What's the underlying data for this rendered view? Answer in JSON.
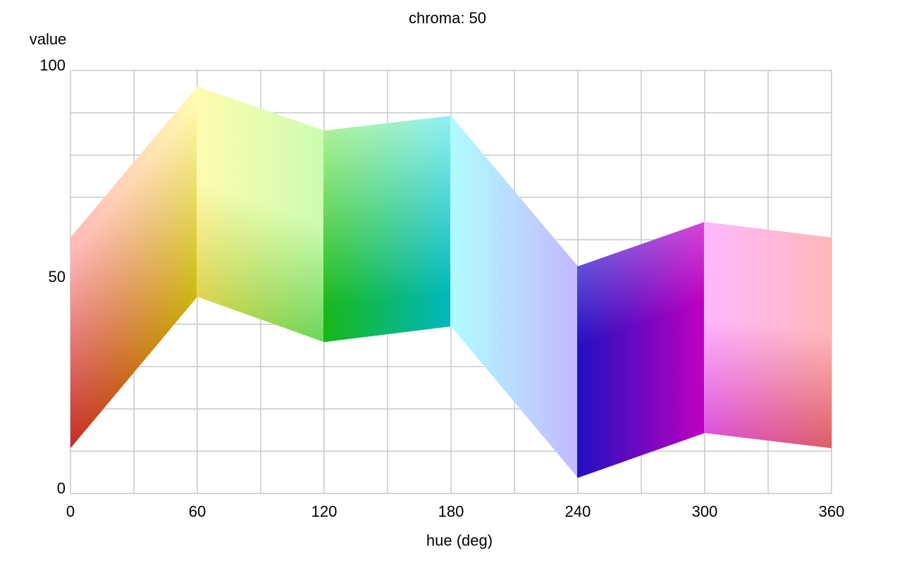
{
  "chart_data": {
    "type": "band",
    "title": "chroma: 50",
    "x_label": "hue (deg)",
    "y_label": "value",
    "x": [
      0,
      60,
      120,
      180,
      240,
      300,
      360
    ],
    "upper": [
      60.5,
      96.2,
      85.8,
      89.3,
      53.7,
      64.2,
      60.5
    ],
    "lower": [
      10.7,
      46.5,
      35.8,
      39.5,
      3.7,
      14.3,
      10.7
    ],
    "upper_colors": [
      "#ffb8b8",
      "#fffcb0",
      "#ccfcb0",
      "#b0fcff",
      "#c4b8ff",
      "#ffb8ff",
      "#ffb8b8"
    ],
    "lower_colors": [
      "#c0201a",
      "#c8b400",
      "#18b818",
      "#00b8c0",
      "#2010c0",
      "#c000c0",
      "#c0101c"
    ],
    "xlim": [
      0,
      360
    ],
    "ylim": [
      0,
      100
    ],
    "xticks": [
      0,
      60,
      120,
      180,
      240,
      300,
      360
    ],
    "yticks": [
      0,
      50,
      100
    ],
    "xgrid": [
      0,
      30,
      60,
      90,
      120,
      150,
      180,
      210,
      240,
      270,
      300,
      330,
      360
    ],
    "ygrid": [
      0,
      10,
      20,
      30,
      40,
      50,
      60,
      70,
      80,
      90,
      100
    ],
    "grid_color": "#c8c8c8"
  }
}
